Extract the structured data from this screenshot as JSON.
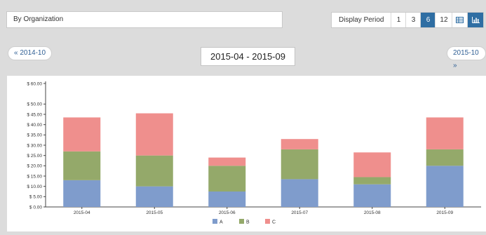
{
  "toolbar": {
    "organization_value": "By Organization",
    "display_period_label": "Display Period",
    "periods": [
      "1",
      "3",
      "6",
      "12"
    ],
    "active_period": "6",
    "active_view": "chart"
  },
  "navigation": {
    "prev_label": "« 2014-10",
    "range_label": "2015-04  -  2015-09",
    "next_label": "2015-10 »"
  },
  "colors": {
    "accent": "#2f6ea3",
    "series_A": "#7f9ccc",
    "series_B": "#94a96a",
    "series_C": "#ef8f8d"
  },
  "chart_data": {
    "type": "bar",
    "stacked": true,
    "categories": [
      "2015-04",
      "2015-05",
      "2015-06",
      "2015-07",
      "2015-08",
      "2015-09"
    ],
    "series": [
      {
        "name": "A",
        "color": "#7f9ccc",
        "values": [
          13,
          10,
          7.5,
          13.5,
          11,
          20
        ]
      },
      {
        "name": "B",
        "color": "#94a96a",
        "values": [
          14,
          15,
          12.5,
          14.5,
          3.5,
          8
        ]
      },
      {
        "name": "C",
        "color": "#ef8f8d",
        "values": [
          16.5,
          20.5,
          4,
          5,
          12,
          15.5
        ]
      }
    ],
    "ylim": [
      0,
      60
    ],
    "yticks": [
      "$ 0.00",
      "$ 5.00",
      "$ 10.00",
      "$ 15.00",
      "$ 20.00",
      "$ 25.00",
      "$ 30.00",
      "$ 35.00",
      "$ 40.00",
      "$ 45.00",
      "$ 50.00"
    ],
    "ytick_values": [
      0,
      5,
      10,
      15,
      20,
      25,
      30,
      35,
      40,
      45,
      50
    ],
    "top_tick_label": "$ 60.00",
    "top_tick_value": 60,
    "grid": false,
    "legend": "bottom-center"
  }
}
